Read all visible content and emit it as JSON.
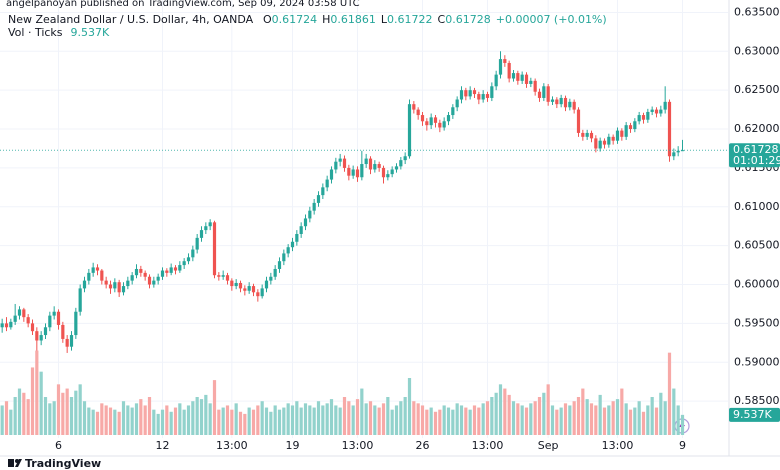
{
  "chart_data": {
    "type": "candlestick",
    "attribution": "angelpanoyan published on TradingView.com, Sep 09, 2024 03:58 UTC",
    "title": "New Zealand Dollar / U.S. Dollar, 4h, OANDA",
    "ohlc_labels": [
      "O",
      "H",
      "L",
      "C"
    ],
    "change": "+0.00007 (+0.01%)",
    "volume_title": "Vol · Ticks",
    "last_volume_label": "9.537K",
    "countdown": "01:01:29",
    "brand": "TradingView",
    "up_color": "#26a69a",
    "down_color": "#ef5350",
    "volume_up_color": "#92d2cc",
    "volume_down_color": "#f7a9a7",
    "grid": true,
    "ylim": [
      0.58,
      0.6366
    ],
    "yticks": [
      {
        "value": 0.585,
        "label": "0.58500"
      },
      {
        "value": 0.59,
        "label": "0.59000"
      },
      {
        "value": 0.595,
        "label": "0.59500"
      },
      {
        "value": 0.6,
        "label": "0.60000"
      },
      {
        "value": 0.605,
        "label": "0.60500"
      },
      {
        "value": 0.61,
        "label": "0.61000"
      },
      {
        "value": 0.615,
        "label": "0.61500"
      },
      {
        "value": 0.62,
        "label": "0.62000"
      },
      {
        "value": 0.625,
        "label": "0.62500"
      },
      {
        "value": 0.63,
        "label": "0.63000"
      },
      {
        "value": 0.635,
        "label": "0.63500"
      }
    ],
    "xlim": [
      -0.5,
      167.5
    ],
    "xticks": [
      {
        "value": 13,
        "label": "6"
      },
      {
        "value": 37,
        "label": "12"
      },
      {
        "value": 53,
        "label": "13:00"
      },
      {
        "value": 67,
        "label": "19"
      },
      {
        "value": 82,
        "label": "13:00"
      },
      {
        "value": 97,
        "label": "26"
      },
      {
        "value": 112,
        "label": "13:00"
      },
      {
        "value": 126,
        "label": "Sep"
      },
      {
        "value": 142,
        "label": "13:00"
      },
      {
        "value": 157,
        "label": "9"
      }
    ],
    "volume_lim": [
      0,
      45000
    ],
    "ohlc": [
      [
        0.5945,
        0.5956,
        0.5938,
        0.595
      ],
      [
        0.595,
        0.5958,
        0.594,
        0.5945
      ],
      [
        0.5945,
        0.5956,
        0.5942,
        0.5952
      ],
      [
        0.5952,
        0.5975,
        0.5948,
        0.596
      ],
      [
        0.596,
        0.5972,
        0.5955,
        0.5968
      ],
      [
        0.5968,
        0.597,
        0.5952,
        0.5958
      ],
      [
        0.5958,
        0.5962,
        0.5945,
        0.595
      ],
      [
        0.595,
        0.5955,
        0.5935,
        0.594
      ],
      [
        0.594,
        0.5945,
        0.5915,
        0.5928
      ],
      [
        0.5928,
        0.594,
        0.5922,
        0.5935
      ],
      [
        0.5935,
        0.595,
        0.593,
        0.5945
      ],
      [
        0.5945,
        0.5965,
        0.594,
        0.596
      ],
      [
        0.596,
        0.5972,
        0.5955,
        0.5965
      ],
      [
        0.5965,
        0.5968,
        0.5942,
        0.5948
      ],
      [
        0.5948,
        0.5952,
        0.5925,
        0.593
      ],
      [
        0.593,
        0.5935,
        0.5912,
        0.592
      ],
      [
        0.592,
        0.594,
        0.5915,
        0.5935
      ],
      [
        0.5935,
        0.597,
        0.593,
        0.5965
      ],
      [
        0.5965,
        0.6,
        0.596,
        0.5995
      ],
      [
        0.5995,
        0.601,
        0.599,
        0.6005
      ],
      [
        0.6005,
        0.602,
        0.6,
        0.6015
      ],
      [
        0.6015,
        0.6028,
        0.601,
        0.6022
      ],
      [
        0.6022,
        0.6026,
        0.6012,
        0.6018
      ],
      [
        0.6018,
        0.602,
        0.6,
        0.6005
      ],
      [
        0.6005,
        0.601,
        0.5995,
        0.6
      ],
      [
        0.6,
        0.6005,
        0.5988,
        0.5995
      ],
      [
        0.5995,
        0.6008,
        0.599,
        0.6003
      ],
      [
        0.6003,
        0.6006,
        0.5984,
        0.599
      ],
      [
        0.599,
        0.6003,
        0.5986,
        0.5998
      ],
      [
        0.5998,
        0.601,
        0.5994,
        0.6005
      ],
      [
        0.6005,
        0.6016,
        0.6,
        0.6012
      ],
      [
        0.6012,
        0.6026,
        0.6008,
        0.602
      ],
      [
        0.602,
        0.6024,
        0.601,
        0.6015
      ],
      [
        0.6015,
        0.6018,
        0.6005,
        0.601
      ],
      [
        0.601,
        0.6013,
        0.5995,
        0.6
      ],
      [
        0.6,
        0.601,
        0.5996,
        0.6005
      ],
      [
        0.6005,
        0.6014,
        0.6,
        0.601
      ],
      [
        0.601,
        0.6022,
        0.6006,
        0.6018
      ],
      [
        0.6018,
        0.6021,
        0.601,
        0.6015
      ],
      [
        0.6015,
        0.6027,
        0.6012,
        0.6022
      ],
      [
        0.6022,
        0.6025,
        0.6013,
        0.6018
      ],
      [
        0.6018,
        0.603,
        0.6015,
        0.6025
      ],
      [
        0.6025,
        0.6034,
        0.602,
        0.603
      ],
      [
        0.603,
        0.604,
        0.6026,
        0.6035
      ],
      [
        0.6035,
        0.605,
        0.603,
        0.6045
      ],
      [
        0.6045,
        0.6065,
        0.604,
        0.606
      ],
      [
        0.606,
        0.6075,
        0.6055,
        0.607
      ],
      [
        0.607,
        0.608,
        0.6065,
        0.6075
      ],
      [
        0.6075,
        0.6084,
        0.607,
        0.608
      ],
      [
        0.608,
        0.6082,
        0.6008,
        0.6012
      ],
      [
        0.6012,
        0.6016,
        0.6005,
        0.601
      ],
      [
        0.601,
        0.6018,
        0.6006,
        0.6012
      ],
      [
        0.6012,
        0.6015,
        0.6,
        0.6005
      ],
      [
        0.6005,
        0.6008,
        0.5992,
        0.5998
      ],
      [
        0.5998,
        0.6007,
        0.5994,
        0.6002
      ],
      [
        0.6002,
        0.6005,
        0.599,
        0.5995
      ],
      [
        0.5995,
        0.5999,
        0.5986,
        0.5992
      ],
      [
        0.5992,
        0.6003,
        0.5988,
        0.5998
      ],
      [
        0.5998,
        0.6001,
        0.5985,
        0.599
      ],
      [
        0.599,
        0.5994,
        0.5978,
        0.5985
      ],
      [
        0.5985,
        0.6,
        0.5982,
        0.5995
      ],
      [
        0.5995,
        0.601,
        0.599,
        0.6005
      ],
      [
        0.6005,
        0.6015,
        0.6,
        0.601
      ],
      [
        0.601,
        0.6025,
        0.6006,
        0.602
      ],
      [
        0.602,
        0.6035,
        0.6015,
        0.603
      ],
      [
        0.603,
        0.6045,
        0.6025,
        0.604
      ],
      [
        0.604,
        0.6052,
        0.6035,
        0.6048
      ],
      [
        0.6048,
        0.606,
        0.6043,
        0.6055
      ],
      [
        0.6055,
        0.607,
        0.605,
        0.6065
      ],
      [
        0.6065,
        0.608,
        0.606,
        0.6075
      ],
      [
        0.6075,
        0.609,
        0.607,
        0.6085
      ],
      [
        0.6085,
        0.61,
        0.608,
        0.6095
      ],
      [
        0.6095,
        0.611,
        0.609,
        0.6105
      ],
      [
        0.6105,
        0.612,
        0.61,
        0.6115
      ],
      [
        0.6115,
        0.613,
        0.611,
        0.6125
      ],
      [
        0.6125,
        0.614,
        0.612,
        0.6135
      ],
      [
        0.6135,
        0.6152,
        0.613,
        0.6148
      ],
      [
        0.6148,
        0.6163,
        0.6143,
        0.6158
      ],
      [
        0.6158,
        0.6168,
        0.6152,
        0.6162
      ],
      [
        0.6162,
        0.6166,
        0.6145,
        0.615
      ],
      [
        0.615,
        0.6154,
        0.6134,
        0.614
      ],
      [
        0.614,
        0.6153,
        0.6136,
        0.6148
      ],
      [
        0.6148,
        0.6152,
        0.6132,
        0.6138
      ],
      [
        0.6138,
        0.6172,
        0.6134,
        0.6155
      ],
      [
        0.6155,
        0.6168,
        0.615,
        0.6162
      ],
      [
        0.6162,
        0.6165,
        0.6142,
        0.6148
      ],
      [
        0.6148,
        0.616,
        0.6144,
        0.6155
      ],
      [
        0.6155,
        0.6158,
        0.6145,
        0.615
      ],
      [
        0.615,
        0.6153,
        0.613,
        0.6138
      ],
      [
        0.6138,
        0.6147,
        0.6134,
        0.6142
      ],
      [
        0.6142,
        0.6152,
        0.6138,
        0.6148
      ],
      [
        0.6148,
        0.6156,
        0.6144,
        0.6152
      ],
      [
        0.6152,
        0.6164,
        0.6148,
        0.616
      ],
      [
        0.616,
        0.617,
        0.6155,
        0.6165
      ],
      [
        0.6165,
        0.6238,
        0.6162,
        0.6232
      ],
      [
        0.6232,
        0.6236,
        0.622,
        0.6225
      ],
      [
        0.6225,
        0.6228,
        0.6212,
        0.6218
      ],
      [
        0.6218,
        0.6222,
        0.6204,
        0.621
      ],
      [
        0.621,
        0.6214,
        0.6198,
        0.6205
      ],
      [
        0.6205,
        0.622,
        0.62,
        0.6215
      ],
      [
        0.6215,
        0.6218,
        0.6202,
        0.6208
      ],
      [
        0.6208,
        0.6212,
        0.6196,
        0.6202
      ],
      [
        0.6202,
        0.6215,
        0.6198,
        0.621
      ],
      [
        0.621,
        0.6222,
        0.6205,
        0.6218
      ],
      [
        0.6218,
        0.6232,
        0.6213,
        0.6228
      ],
      [
        0.6228,
        0.6242,
        0.6223,
        0.6238
      ],
      [
        0.6238,
        0.6255,
        0.6233,
        0.625
      ],
      [
        0.625,
        0.6253,
        0.6237,
        0.6242
      ],
      [
        0.6242,
        0.6255,
        0.6238,
        0.625
      ],
      [
        0.625,
        0.6253,
        0.624,
        0.6245
      ],
      [
        0.6245,
        0.6248,
        0.6232,
        0.6238
      ],
      [
        0.6238,
        0.625,
        0.6234,
        0.6245
      ],
      [
        0.6245,
        0.6248,
        0.6235,
        0.624
      ],
      [
        0.624,
        0.626,
        0.6236,
        0.6255
      ],
      [
        0.6255,
        0.6275,
        0.625,
        0.627
      ],
      [
        0.627,
        0.63,
        0.6265,
        0.629
      ],
      [
        0.629,
        0.6295,
        0.628,
        0.6285
      ],
      [
        0.6285,
        0.6288,
        0.626,
        0.6265
      ],
      [
        0.6265,
        0.6276,
        0.6261,
        0.6272
      ],
      [
        0.6272,
        0.6275,
        0.6257,
        0.6262
      ],
      [
        0.6262,
        0.6274,
        0.6258,
        0.627
      ],
      [
        0.627,
        0.6273,
        0.6253,
        0.6258
      ],
      [
        0.6258,
        0.6266,
        0.6254,
        0.6262
      ],
      [
        0.6262,
        0.6265,
        0.6243,
        0.6248
      ],
      [
        0.6248,
        0.6252,
        0.6235,
        0.624
      ],
      [
        0.624,
        0.6259,
        0.6236,
        0.6255
      ],
      [
        0.6255,
        0.6258,
        0.623,
        0.6235
      ],
      [
        0.6235,
        0.6242,
        0.6231,
        0.6238
      ],
      [
        0.6238,
        0.6241,
        0.6227,
        0.6232
      ],
      [
        0.6232,
        0.6244,
        0.6228,
        0.624
      ],
      [
        0.624,
        0.6243,
        0.6223,
        0.6228
      ],
      [
        0.6228,
        0.6239,
        0.6224,
        0.6235
      ],
      [
        0.6235,
        0.6238,
        0.622,
        0.6225
      ],
      [
        0.6225,
        0.6228,
        0.619,
        0.6195
      ],
      [
        0.6195,
        0.6199,
        0.6185,
        0.619
      ],
      [
        0.619,
        0.6199,
        0.6186,
        0.6195
      ],
      [
        0.6195,
        0.6198,
        0.6183,
        0.6188
      ],
      [
        0.6188,
        0.6192,
        0.617,
        0.6175
      ],
      [
        0.6175,
        0.6189,
        0.6171,
        0.6185
      ],
      [
        0.6185,
        0.6188,
        0.6175,
        0.618
      ],
      [
        0.618,
        0.6194,
        0.6176,
        0.619
      ],
      [
        0.619,
        0.6193,
        0.618,
        0.6185
      ],
      [
        0.6185,
        0.6202,
        0.6181,
        0.6198
      ],
      [
        0.6198,
        0.6201,
        0.6185,
        0.619
      ],
      [
        0.619,
        0.6209,
        0.6186,
        0.6205
      ],
      [
        0.6205,
        0.6208,
        0.6195,
        0.62
      ],
      [
        0.62,
        0.6214,
        0.6196,
        0.621
      ],
      [
        0.621,
        0.6222,
        0.6206,
        0.6218
      ],
      [
        0.6218,
        0.6221,
        0.6207,
        0.6212
      ],
      [
        0.6212,
        0.6226,
        0.6208,
        0.6222
      ],
      [
        0.6222,
        0.6229,
        0.6218,
        0.6225
      ],
      [
        0.6225,
        0.6228,
        0.6215,
        0.622
      ],
      [
        0.622,
        0.623,
        0.6216,
        0.6225
      ],
      [
        0.6225,
        0.6255,
        0.622,
        0.6235
      ],
      [
        0.6235,
        0.6238,
        0.6158,
        0.6165
      ],
      [
        0.6165,
        0.6175,
        0.616,
        0.617
      ],
      [
        0.617,
        0.6178,
        0.6165,
        0.6172
      ],
      [
        0.61724,
        0.61861,
        0.61722,
        0.61728
      ]
    ],
    "volumes": [
      14000,
      16000,
      12000,
      18000,
      22000,
      20000,
      17000,
      32000,
      40000,
      30000,
      18000,
      15000,
      16000,
      24000,
      20000,
      22000,
      18000,
      21000,
      24000,
      16000,
      13000,
      12000,
      11000,
      15000,
      14000,
      13000,
      12000,
      11000,
      16000,
      14000,
      13000,
      15000,
      17000,
      14000,
      18000,
      12000,
      10000,
      12000,
      14000,
      11000,
      13000,
      15000,
      12000,
      14000,
      16000,
      18000,
      17000,
      19000,
      15000,
      26000,
      12000,
      13000,
      14000,
      12000,
      15000,
      11000,
      10000,
      13000,
      12000,
      14000,
      16000,
      13000,
      11000,
      14000,
      12000,
      13000,
      15000,
      14000,
      16000,
      13000,
      15000,
      14000,
      13000,
      16000,
      14000,
      15000,
      17000,
      14000,
      13000,
      18000,
      16000,
      14000,
      17000,
      22000,
      15000,
      16000,
      14000,
      13000,
      15000,
      18000,
      12000,
      14000,
      16000,
      18000,
      27000,
      16000,
      15000,
      14000,
      12000,
      13000,
      11000,
      12000,
      14000,
      13000,
      12000,
      15000,
      14000,
      13000,
      12000,
      14000,
      13000,
      15000,
      16000,
      18000,
      20000,
      24000,
      22000,
      19000,
      16000,
      15000,
      14000,
      13000,
      15000,
      16000,
      18000,
      20000,
      24000,
      14000,
      12000,
      13000,
      15000,
      14000,
      16000,
      18000,
      22000,
      17000,
      15000,
      14000,
      19000,
      13000,
      14000,
      16000,
      17000,
      22000,
      15000,
      12000,
      13000,
      16000,
      11000,
      14000,
      18000,
      13000,
      20000,
      16000,
      39000,
      22000,
      14000,
      9537
    ]
  }
}
